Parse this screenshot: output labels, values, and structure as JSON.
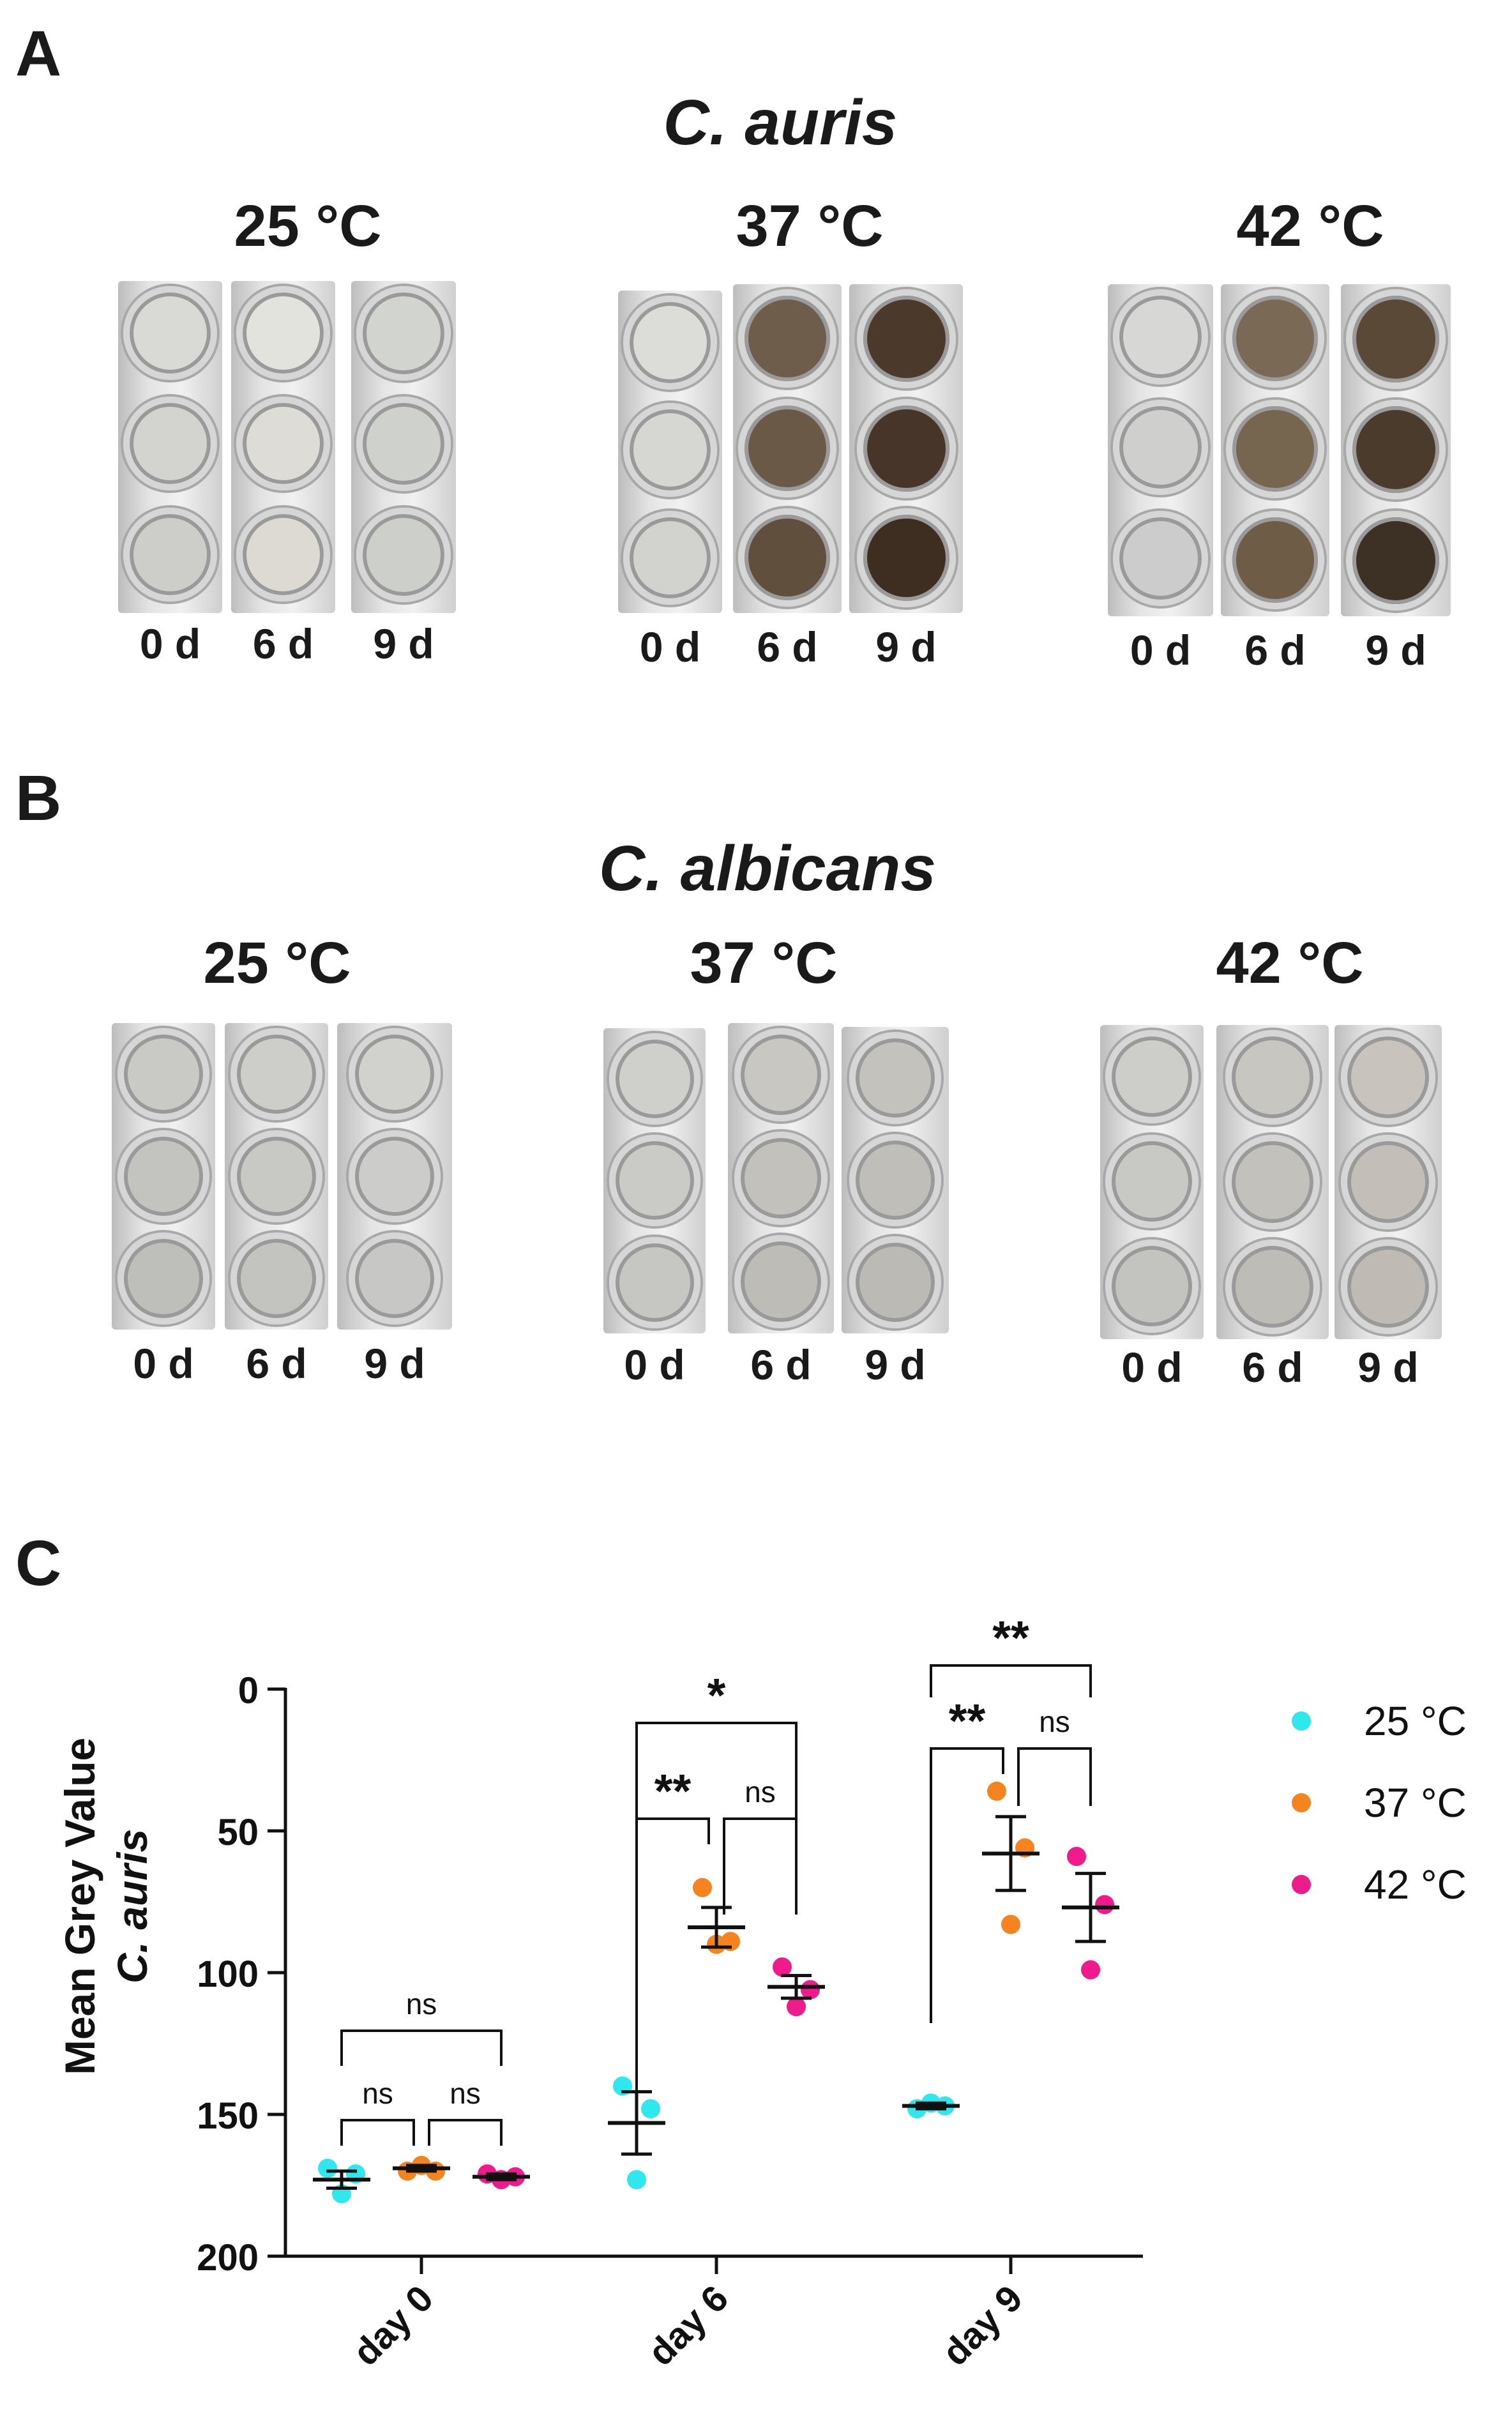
{
  "panel_a": {
    "letter": "A",
    "species": "C. auris",
    "groups": [
      {
        "temp": "25 °C",
        "days": [
          "0 d",
          "6 d",
          "9 d"
        ],
        "well_colors": [
          [
            "#d9d9d6",
            "#d3d3d0",
            "#cdcdca"
          ],
          [
            "#e3e3de",
            "#dedcd6",
            "#dcdad3"
          ],
          [
            "#d2d4d0",
            "#cfd1cc",
            "#cdcfca"
          ]
        ]
      },
      {
        "temp": "37 °C",
        "days": [
          "0 d",
          "6 d",
          "9 d"
        ],
        "well_colors": [
          [
            "#dcdcd8",
            "#d6d6d2",
            "#d2d2ce"
          ],
          [
            "#6e5d4a",
            "#6a5946",
            "#614f3d"
          ],
          [
            "#4b3a2c",
            "#463528",
            "#3e2e22"
          ]
        ]
      },
      {
        "temp": "42 °C",
        "days": [
          "0 d",
          "6 d",
          "9 d"
        ],
        "well_colors": [
          [
            "#d7d8d6",
            "#cfd0ce",
            "#cbcccb"
          ],
          [
            "#7a6a55",
            "#76654f",
            "#6e5c47"
          ],
          [
            "#5a4936",
            "#4a3b2c",
            "#3d3024"
          ]
        ]
      }
    ]
  },
  "panel_b": {
    "letter": "B",
    "species": "C. albicans",
    "groups": [
      {
        "temp": "25 °C",
        "days": [
          "0 d",
          "6 d",
          "9 d"
        ],
        "well_colors": [
          [
            "#c9c9c6",
            "#c3c3c0",
            "#bebebb"
          ],
          [
            "#cdcdca",
            "#c8c8c5",
            "#c3c3c0"
          ],
          [
            "#d1d1ce",
            "#cccccb",
            "#c7c7c5"
          ]
        ]
      },
      {
        "temp": "37 °C",
        "days": [
          "0 d",
          "6 d",
          "9 d"
        ],
        "well_colors": [
          [
            "#cfcfcb",
            "#cacac6",
            "#c6c6c2"
          ],
          [
            "#c8c7c2",
            "#c2c1bc",
            "#bdbcb7"
          ],
          [
            "#c3c2bd",
            "#bfbeb9",
            "#bbbab5"
          ]
        ]
      },
      {
        "temp": "42 °C",
        "days": [
          "0 d",
          "6 d",
          "9 d"
        ],
        "well_colors": [
          [
            "#cdcdca",
            "#c8c8c5",
            "#c3c3c0"
          ],
          [
            "#c7c6c1",
            "#c2c1bc",
            "#bdbcb7"
          ],
          [
            "#c8c4bd",
            "#c3bfb8",
            "#bfbbb4"
          ]
        ]
      }
    ]
  },
  "panel_c": {
    "letter": "C",
    "chart_data": {
      "type": "scatter",
      "ylabel_line1": "Mean Grey Value",
      "ylabel_line2": "C. auris",
      "ylim": [
        200,
        0
      ],
      "y_ticks": [
        "0",
        "50",
        "100",
        "150",
        "200"
      ],
      "categories": [
        "day 0",
        "day 6",
        "day 9"
      ],
      "legend_position": "right",
      "series": [
        {
          "name": "25 °C",
          "color": "#2ee8ee",
          "points": [
            [
              169,
              178,
              171
            ],
            [
              140,
              173,
              148
            ],
            [
              148,
              146,
              147
            ]
          ],
          "mean": [
            173,
            153,
            147
          ],
          "sem": [
            3,
            11,
            1
          ]
        },
        {
          "name": "37 °C",
          "color": "#f5841f",
          "points": [
            [
              170,
              168,
              170
            ],
            [
              70,
              90,
              89
            ],
            [
              36,
              83,
              56
            ]
          ],
          "mean": [
            169,
            84,
            58
          ],
          "sem": [
            1,
            7,
            13
          ]
        },
        {
          "name": "42 °C",
          "color": "#ef1a8b",
          "points": [
            [
              171,
              173,
              172
            ],
            [
              98,
              112,
              106
            ],
            [
              59,
              99,
              76
            ]
          ],
          "mean": [
            172,
            105,
            77
          ],
          "sem": [
            1,
            4,
            12
          ]
        }
      ],
      "annotations": [
        {
          "label": "ns",
          "cat": 0,
          "from": "25 °C",
          "to": "37 °C"
        },
        {
          "label": "ns",
          "cat": 0,
          "from": "37 °C",
          "to": "42 °C"
        },
        {
          "label": "ns",
          "cat": 0,
          "from": "25 °C",
          "to": "42 °C"
        },
        {
          "label": "**",
          "cat": 1,
          "from": "25 °C",
          "to": "37 °C"
        },
        {
          "label": "ns",
          "cat": 1,
          "from": "37 °C",
          "to": "42 °C"
        },
        {
          "label": "*",
          "cat": 1,
          "from": "25 °C",
          "to": "42 °C"
        },
        {
          "label": "**",
          "cat": 2,
          "from": "25 °C",
          "to": "37 °C"
        },
        {
          "label": "ns",
          "cat": 2,
          "from": "37 °C",
          "to": "42 °C"
        },
        {
          "label": "**",
          "cat": 2,
          "from": "25 °C",
          "to": "42 °C"
        }
      ]
    }
  }
}
